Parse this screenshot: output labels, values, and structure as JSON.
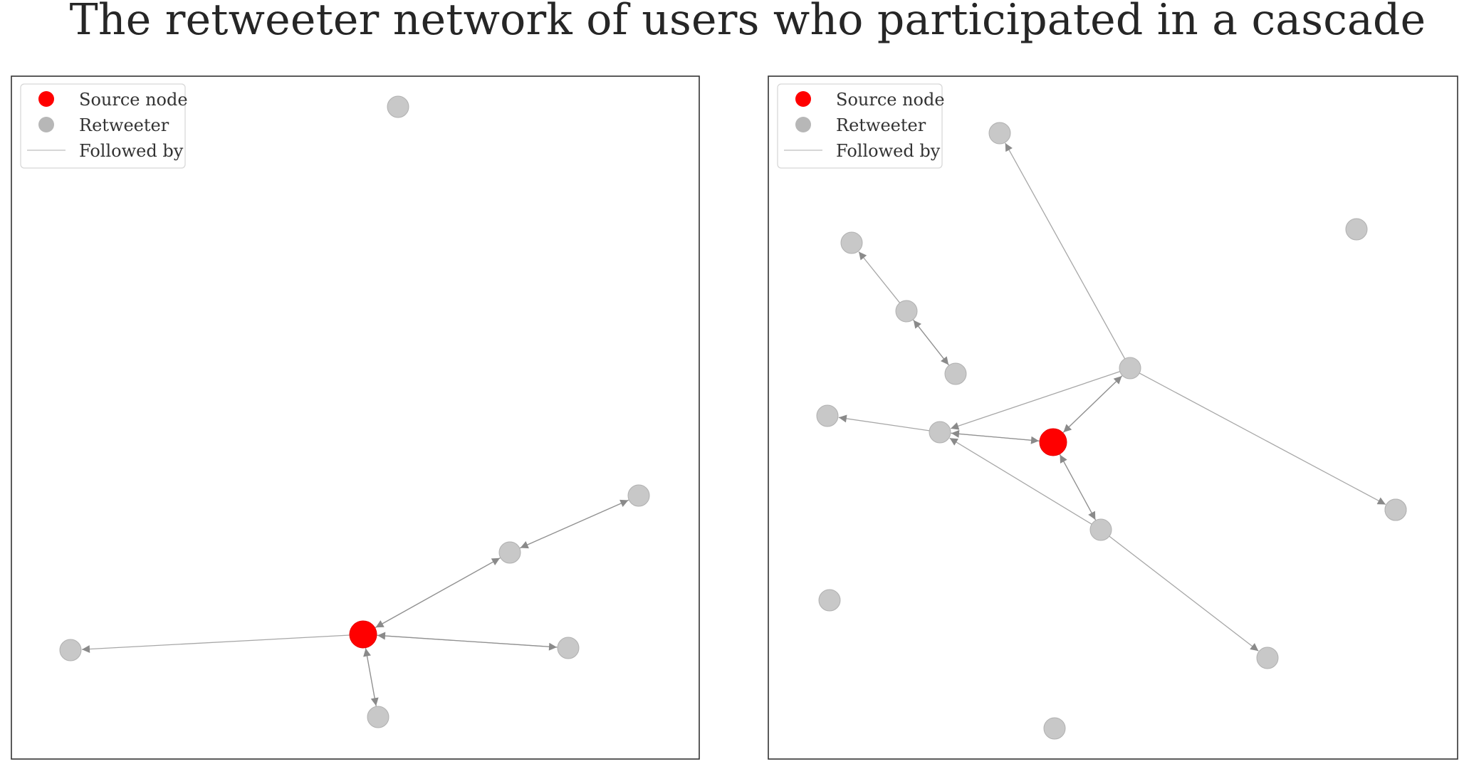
{
  "title": "The retweeter network of users who participated in a cascade",
  "legend": {
    "source": "Source node",
    "retweeter": "Retweeter",
    "followed": "Followed by"
  },
  "colors": {
    "source": "#ff0000",
    "retweeter": "#c8c8c8",
    "retweeter_legend": "#b7b7b7",
    "edge": "#8a8a8a",
    "frame": "#333333"
  },
  "panels": [
    {
      "nodes": [
        {
          "id": "s",
          "source": true
        },
        {
          "id": "a"
        },
        {
          "id": "b"
        },
        {
          "id": "c"
        },
        {
          "id": "d"
        },
        {
          "id": "e"
        },
        {
          "id": "f"
        }
      ],
      "edges": [
        {
          "from": "s",
          "to": "a"
        },
        {
          "from": "s",
          "to": "b"
        },
        {
          "from": "b",
          "to": "s"
        },
        {
          "from": "s",
          "to": "c"
        },
        {
          "from": "c",
          "to": "s"
        },
        {
          "from": "s",
          "to": "d"
        },
        {
          "from": "d",
          "to": "s"
        },
        {
          "from": "c",
          "to": "e"
        },
        {
          "from": "e",
          "to": "c"
        }
      ]
    },
    {
      "nodes": [
        {
          "id": "s",
          "source": true
        },
        {
          "id": "n1"
        },
        {
          "id": "n2"
        },
        {
          "id": "n3"
        },
        {
          "id": "n4"
        },
        {
          "id": "n5"
        },
        {
          "id": "n6"
        },
        {
          "id": "n7"
        },
        {
          "id": "n8"
        },
        {
          "id": "n9"
        },
        {
          "id": "n10"
        },
        {
          "id": "n11"
        },
        {
          "id": "n12"
        },
        {
          "id": "n13"
        },
        {
          "id": "n14"
        }
      ],
      "edges": [
        {
          "from": "n6",
          "to": "n1"
        },
        {
          "from": "n4",
          "to": "n3"
        },
        {
          "from": "n4",
          "to": "n5"
        },
        {
          "from": "n5",
          "to": "n4"
        },
        {
          "from": "n6",
          "to": "s"
        },
        {
          "from": "s",
          "to": "n6"
        },
        {
          "from": "n6",
          "to": "n8"
        },
        {
          "from": "n6",
          "to": "n12"
        },
        {
          "from": "n8",
          "to": "n7"
        },
        {
          "from": "s",
          "to": "n8"
        },
        {
          "from": "n8",
          "to": "s"
        },
        {
          "from": "s",
          "to": "n10"
        },
        {
          "from": "n10",
          "to": "s"
        },
        {
          "from": "n10",
          "to": "n8"
        },
        {
          "from": "n10",
          "to": "n13"
        }
      ]
    }
  ]
}
